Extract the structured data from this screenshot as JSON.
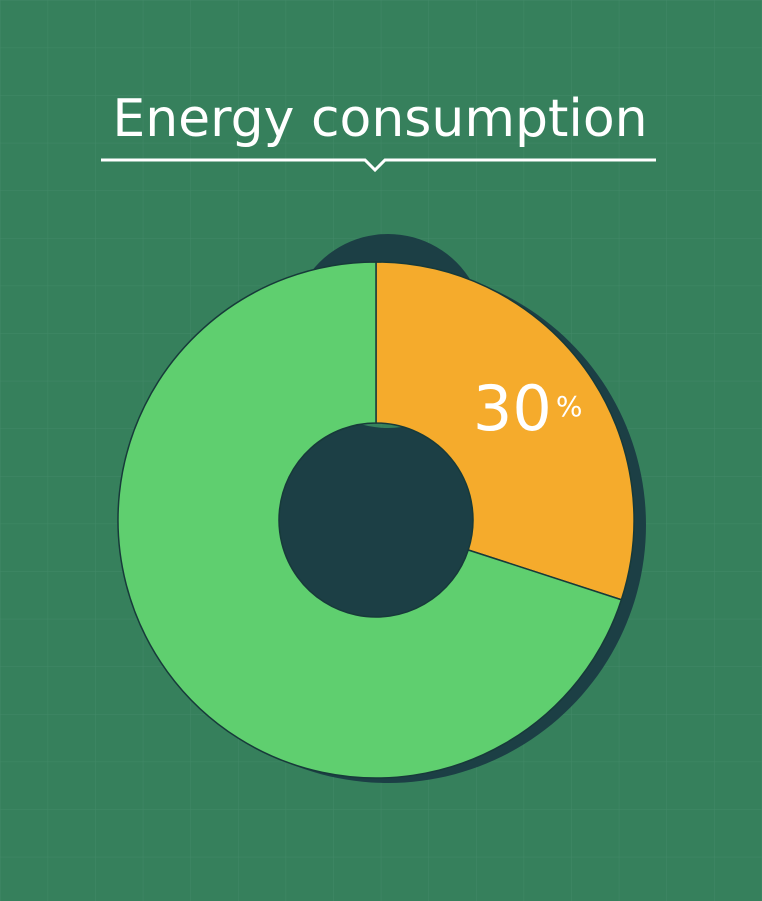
{
  "chart_data": {
    "type": "pie",
    "donut": true,
    "title": "Energy consumption",
    "values": [
      30,
      70
    ],
    "value_labels": [
      "30%",
      null
    ],
    "colors": [
      "#f5ab2c",
      "#5fcf6f"
    ]
  }
}
